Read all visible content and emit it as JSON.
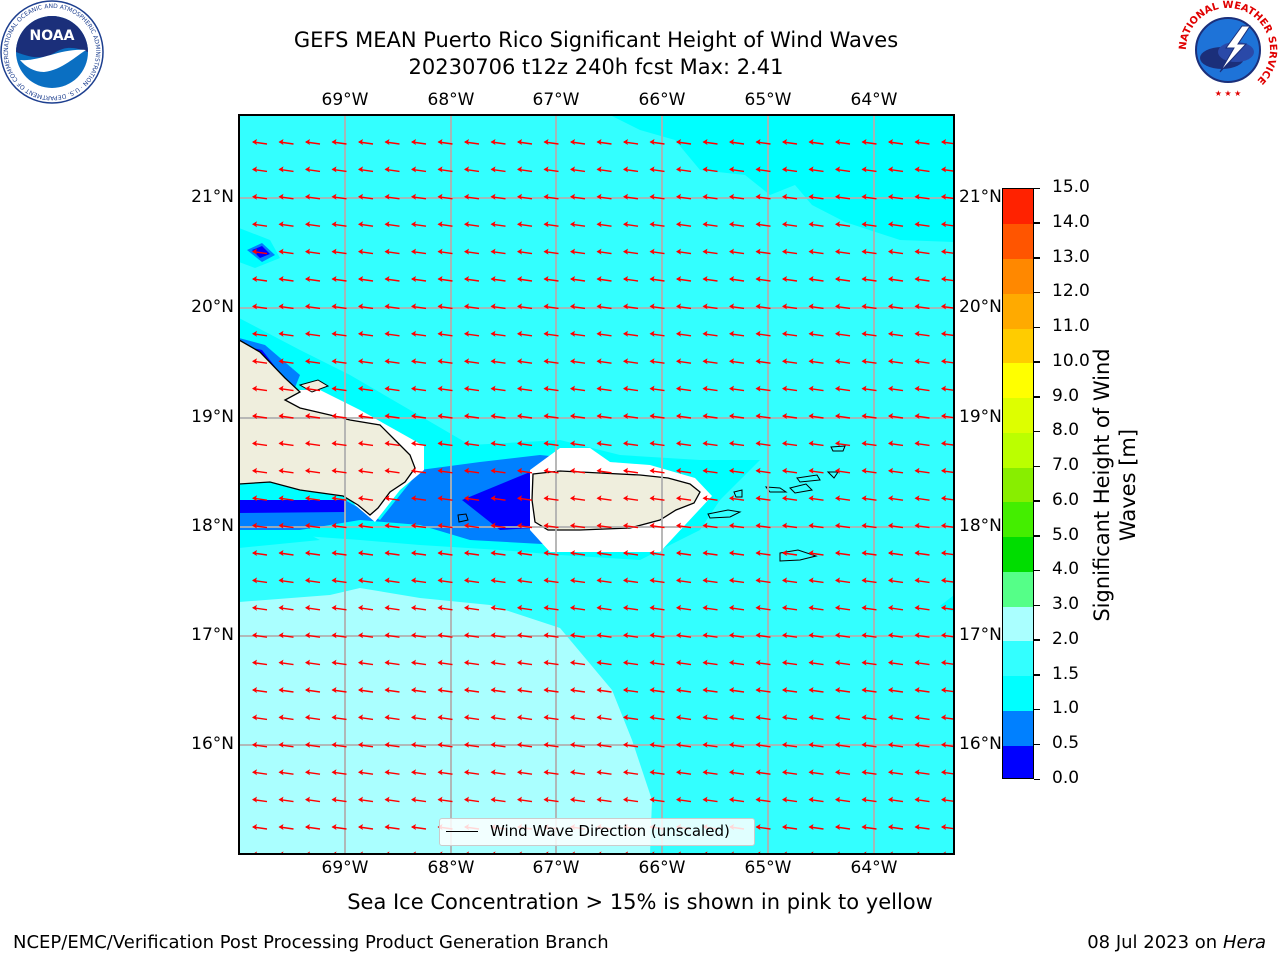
{
  "title": {
    "line1": "GEFS MEAN Puerto Rico Significant Height of Wind Waves",
    "line2": "20230706 t12z 240h fcst   Max: 2.41"
  },
  "logos": {
    "noaa": {
      "text": "NOAA",
      "ring_text": "NATIONAL OCEANIC AND ATMOSPHERIC ADMINISTRATION · U.S. DEPARTMENT OF COMMERCE"
    },
    "nws": {
      "ring_text": "NATIONAL WEATHER SERVICE"
    }
  },
  "map": {
    "lon_labels": [
      "69°W",
      "68°W",
      "67°W",
      "66°W",
      "65°W",
      "64°W"
    ],
    "lat_labels": [
      "21°N",
      "20°N",
      "19°N",
      "18°N",
      "17°N",
      "16°N"
    ],
    "legend_label": "Wind Wave Direction (unscaled)",
    "colors": {
      "ocean_dominant": "#33ffff",
      "ocean_light": "#aaffff",
      "ocean_cyan": "#00ffff",
      "wave_1_0": "#0080ff",
      "wave_0_5": "#0000ff",
      "land": "#efeedd",
      "arrows": "#ff0000"
    }
  },
  "colorbar": {
    "label": "Significant Height of Wind Waves [m]",
    "ticks": [
      "0.0",
      "0.5",
      "1.0",
      "1.5",
      "2.0",
      "3.0",
      "4.0",
      "5.0",
      "6.0",
      "7.0",
      "8.0",
      "9.0",
      "10.0",
      "11.0",
      "12.0",
      "13.0",
      "14.0",
      "15.0"
    ],
    "colors": [
      "#0000ff",
      "#0080ff",
      "#00ffff",
      "#33ffff",
      "#aaffff",
      "#55ff88",
      "#00dd00",
      "#44ee00",
      "#88ee00",
      "#bbff00",
      "#ddff00",
      "#ffff00",
      "#ffcc00",
      "#ffaa00",
      "#ff8800",
      "#ff5500",
      "#ff2200"
    ]
  },
  "subtitle": "Sea Ice Concentration > 15% is shown in pink to yellow",
  "footer": {
    "left": "NCEP/EMC/Verification Post Processing Product Generation Branch",
    "right_date": "08 Jul 2023 on ",
    "right_host": "Hera"
  }
}
